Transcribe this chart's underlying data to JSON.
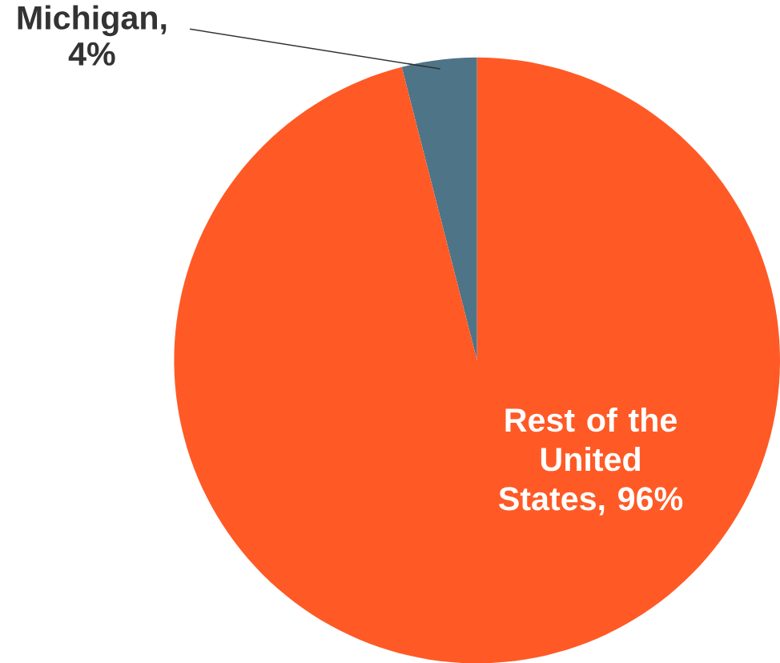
{
  "chart_data": {
    "type": "pie",
    "categories": [
      "Michigan, 4%",
      "Rest of the United States, 96%"
    ],
    "values": [
      4,
      96
    ],
    "colors": [
      "#4e7487",
      "#ff5a26"
    ]
  }
}
